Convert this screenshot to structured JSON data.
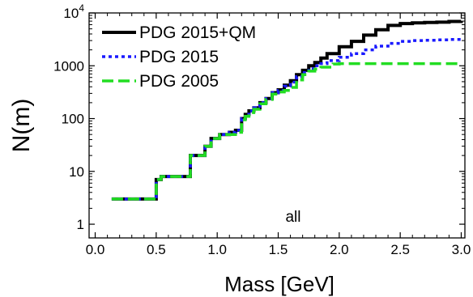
{
  "chart_data": {
    "type": "line",
    "title": "",
    "xlabel": "Mass [GeV]",
    "ylabel": "N(m)",
    "xlim": [
      -0.05,
      3.03
    ],
    "ylim": [
      0.55,
      10000
    ],
    "yscale": "log",
    "x_ticks": [
      {
        "value": 0.0,
        "label": "0.0"
      },
      {
        "value": 0.5,
        "label": "0.5"
      },
      {
        "value": 1.0,
        "label": "1.0"
      },
      {
        "value": 1.5,
        "label": "1.5"
      },
      {
        "value": 2.0,
        "label": "2.0"
      },
      {
        "value": 2.5,
        "label": "2.5"
      },
      {
        "value": 3.0,
        "label": "3.0"
      }
    ],
    "y_ticks": [
      {
        "value": 1,
        "label": "1"
      },
      {
        "value": 10,
        "label": "10"
      },
      {
        "value": 100,
        "label": "100"
      },
      {
        "value": 1000,
        "label": "1000"
      },
      {
        "value": 10000,
        "label": "10",
        "sup": "4"
      }
    ],
    "annotation": "all",
    "legend_position": "top-left",
    "series": [
      {
        "name": "PDG 2015+QM",
        "color": "#000000",
        "style": "solid",
        "x": [
          0.135,
          0.49,
          0.5,
          0.54,
          0.76,
          0.78,
          0.86,
          0.9,
          0.95,
          1.02,
          1.1,
          1.15,
          1.2,
          1.23,
          1.26,
          1.3,
          1.35,
          1.4,
          1.45,
          1.5,
          1.55,
          1.6,
          1.65,
          1.7,
          1.75,
          1.8,
          1.85,
          1.9,
          2.0,
          2.1,
          2.2,
          2.3,
          2.4,
          2.5,
          2.6,
          2.7,
          2.8,
          2.9,
          3.0
        ],
        "y": [
          3,
          3,
          7,
          8,
          8,
          20,
          20,
          30,
          42,
          50,
          55,
          60,
          100,
          120,
          140,
          160,
          200,
          240,
          310,
          350,
          430,
          520,
          680,
          820,
          1000,
          1150,
          1400,
          1700,
          2300,
          2900,
          3800,
          4800,
          5800,
          6300,
          6500,
          6600,
          6700,
          6900,
          7000
        ]
      },
      {
        "name": "PDG 2015",
        "color": "#1a1aff",
        "style": "dotted",
        "x": [
          0.135,
          0.49,
          0.5,
          0.54,
          0.76,
          0.78,
          0.86,
          0.9,
          0.95,
          1.02,
          1.1,
          1.15,
          1.2,
          1.23,
          1.26,
          1.3,
          1.35,
          1.4,
          1.45,
          1.5,
          1.55,
          1.6,
          1.65,
          1.7,
          1.75,
          1.8,
          1.85,
          1.9,
          2.0,
          2.1,
          2.2,
          2.3,
          2.4,
          2.5,
          2.6,
          2.7,
          2.8,
          2.9,
          3.0
        ],
        "y": [
          3,
          3,
          7,
          8,
          8,
          20,
          20,
          30,
          42,
          50,
          55,
          60,
          100,
          120,
          140,
          160,
          200,
          240,
          310,
          340,
          410,
          490,
          620,
          740,
          880,
          1000,
          1100,
          1250,
          1450,
          1700,
          2000,
          2350,
          2650,
          2900,
          3000,
          3050,
          3100,
          3150,
          3300
        ]
      },
      {
        "name": "PDG 2005",
        "color": "#22dd22",
        "style": "dashed",
        "x": [
          0.135,
          0.49,
          0.5,
          0.54,
          0.76,
          0.78,
          0.86,
          0.9,
          0.95,
          1.02,
          1.1,
          1.15,
          1.2,
          1.23,
          1.26,
          1.3,
          1.35,
          1.4,
          1.45,
          1.5,
          1.55,
          1.6,
          1.65,
          1.7,
          1.75,
          1.8,
          1.85,
          1.95,
          2.0,
          2.5,
          3.0
        ],
        "y": [
          3,
          3,
          7,
          8,
          8,
          20,
          20,
          30,
          42,
          50,
          50,
          55,
          95,
          110,
          130,
          150,
          190,
          230,
          290,
          320,
          340,
          390,
          540,
          680,
          790,
          860,
          940,
          1080,
          1100,
          1100,
          1100
        ]
      }
    ]
  }
}
